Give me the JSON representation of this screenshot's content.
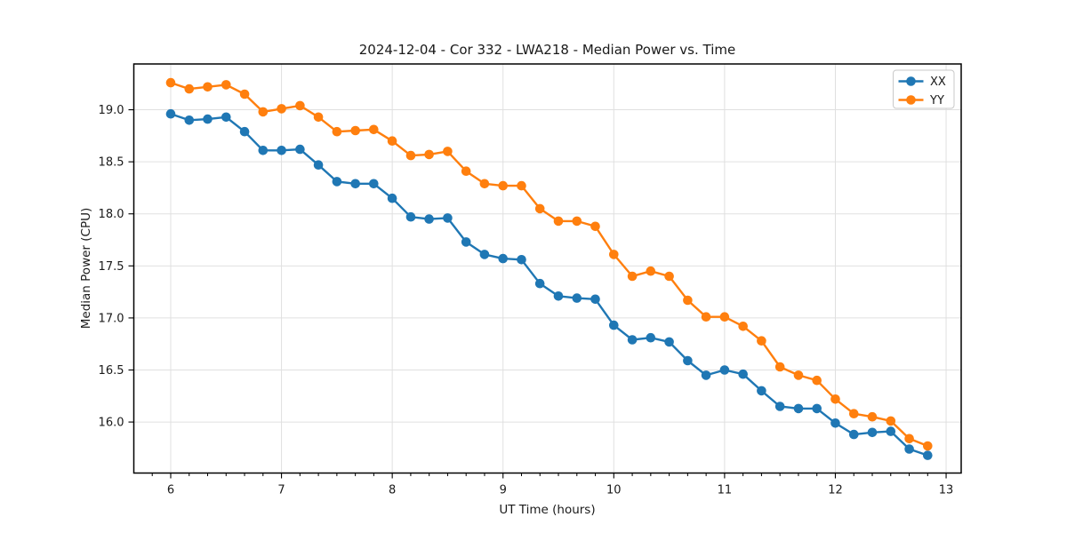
{
  "chart_data": {
    "type": "line",
    "title": "2024-12-04 - Cor 332 - LWA218 - Median Power vs. Time",
    "xlabel": "UT Time (hours)",
    "ylabel": "Median Power (CPU)",
    "xlim": [
      5.667,
      13.136
    ],
    "ylim": [
      15.51,
      19.44
    ],
    "xticks": [
      6,
      7,
      8,
      9,
      10,
      11,
      12,
      13
    ],
    "yticks": [
      16.0,
      16.5,
      17.0,
      17.5,
      18.0,
      18.5,
      19.0
    ],
    "x_minor_tick_interval_hours": 0.16667,
    "grid": true,
    "grid_color": "#e0e0e0",
    "legend_position": "upper right",
    "x": [
      6.0,
      6.167,
      6.333,
      6.5,
      6.667,
      6.833,
      7.0,
      7.167,
      7.333,
      7.5,
      7.667,
      7.833,
      8.0,
      8.167,
      8.333,
      8.5,
      8.667,
      8.833,
      9.0,
      9.167,
      9.333,
      9.5,
      9.667,
      9.833,
      10.0,
      10.167,
      10.333,
      10.5,
      10.667,
      10.833,
      11.0,
      11.167,
      11.333,
      11.5,
      11.667,
      11.833,
      12.0,
      12.167,
      12.333,
      12.5,
      12.667,
      12.833
    ],
    "series": [
      {
        "name": "XX",
        "color": "#1f77b4",
        "values": [
          18.96,
          18.9,
          18.91,
          18.93,
          18.79,
          18.61,
          18.61,
          18.62,
          18.47,
          18.31,
          18.29,
          18.29,
          18.15,
          17.97,
          17.95,
          17.96,
          17.73,
          17.61,
          17.57,
          17.56,
          17.33,
          17.21,
          17.19,
          17.18,
          16.93,
          16.79,
          16.81,
          16.77,
          16.59,
          16.45,
          16.5,
          16.46,
          16.3,
          16.15,
          16.13,
          16.13,
          15.99,
          15.88,
          15.9,
          15.91,
          15.74,
          15.68
        ]
      },
      {
        "name": "YY",
        "color": "#ff7f0e",
        "values": [
          19.26,
          19.2,
          19.22,
          19.24,
          19.15,
          18.98,
          19.01,
          19.04,
          18.93,
          18.79,
          18.8,
          18.81,
          18.7,
          18.56,
          18.57,
          18.6,
          18.41,
          18.29,
          18.27,
          18.27,
          18.05,
          17.93,
          17.93,
          17.88,
          17.61,
          17.4,
          17.45,
          17.4,
          17.17,
          17.01,
          17.01,
          16.92,
          16.78,
          16.53,
          16.45,
          16.4,
          16.22,
          16.08,
          16.05,
          16.01,
          15.84,
          15.77
        ]
      }
    ]
  }
}
